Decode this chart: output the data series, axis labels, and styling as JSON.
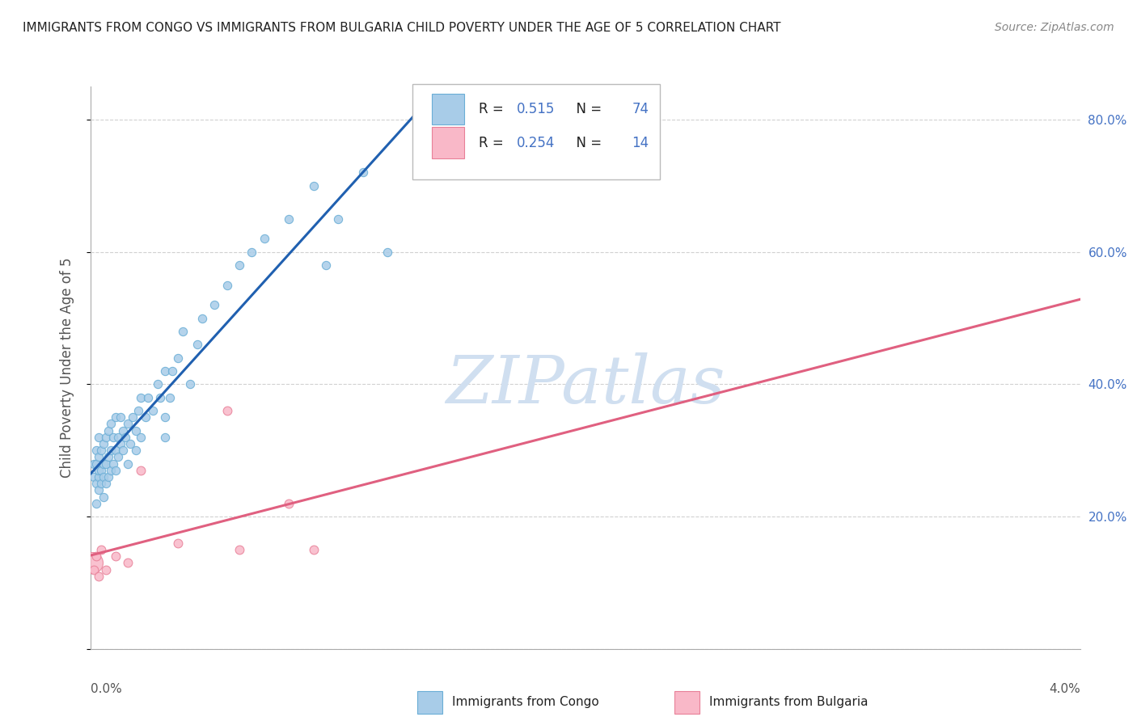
{
  "title": "IMMIGRANTS FROM CONGO VS IMMIGRANTS FROM BULGARIA CHILD POVERTY UNDER THE AGE OF 5 CORRELATION CHART",
  "source": "Source: ZipAtlas.com",
  "ylabel": "Child Poverty Under the Age of 5",
  "x_min": 0.0,
  "x_max": 0.04,
  "y_min": 0.0,
  "y_max": 0.85,
  "y_ticks": [
    0.0,
    0.2,
    0.4,
    0.6,
    0.8
  ],
  "congo_color": "#a8cce8",
  "congo_edge_color": "#6aaed6",
  "bulgaria_color": "#f9b8c8",
  "bulgaria_edge_color": "#e88098",
  "congo_line_color": "#2060b0",
  "bulgaria_line_color": "#e06080",
  "legend_color_congo": "#a8cce8",
  "legend_color_bulgaria": "#f9b8c8",
  "legend_edge_congo": "#6aaed6",
  "legend_edge_bulgaria": "#e88098",
  "watermark_color": "#d0dff0",
  "background_color": "#ffffff",
  "congo_scatter_x": [
    0.0001,
    0.0001,
    0.0002,
    0.0002,
    0.0002,
    0.0002,
    0.0003,
    0.0003,
    0.0003,
    0.0003,
    0.0003,
    0.0004,
    0.0004,
    0.0004,
    0.0005,
    0.0005,
    0.0005,
    0.0005,
    0.0006,
    0.0006,
    0.0006,
    0.0007,
    0.0007,
    0.0007,
    0.0008,
    0.0008,
    0.0008,
    0.0009,
    0.0009,
    0.001,
    0.001,
    0.001,
    0.0011,
    0.0011,
    0.0012,
    0.0012,
    0.0013,
    0.0013,
    0.0014,
    0.0015,
    0.0015,
    0.0016,
    0.0017,
    0.0018,
    0.0018,
    0.0019,
    0.002,
    0.002,
    0.0022,
    0.0023,
    0.0025,
    0.0027,
    0.0028,
    0.003,
    0.003,
    0.003,
    0.0032,
    0.0033,
    0.0035,
    0.0037,
    0.004,
    0.0043,
    0.0045,
    0.005,
    0.0055,
    0.006,
    0.0065,
    0.007,
    0.008,
    0.009,
    0.0095,
    0.01,
    0.011,
    0.012
  ],
  "congo_scatter_y": [
    0.26,
    0.28,
    0.22,
    0.25,
    0.28,
    0.3,
    0.24,
    0.26,
    0.27,
    0.29,
    0.32,
    0.25,
    0.27,
    0.3,
    0.23,
    0.26,
    0.28,
    0.31,
    0.25,
    0.28,
    0.32,
    0.26,
    0.29,
    0.33,
    0.27,
    0.3,
    0.34,
    0.28,
    0.32,
    0.27,
    0.3,
    0.35,
    0.29,
    0.32,
    0.31,
    0.35,
    0.3,
    0.33,
    0.32,
    0.28,
    0.34,
    0.31,
    0.35,
    0.3,
    0.33,
    0.36,
    0.32,
    0.38,
    0.35,
    0.38,
    0.36,
    0.4,
    0.38,
    0.32,
    0.35,
    0.42,
    0.38,
    0.42,
    0.44,
    0.48,
    0.4,
    0.46,
    0.5,
    0.52,
    0.55,
    0.58,
    0.6,
    0.62,
    0.65,
    0.7,
    0.58,
    0.65,
    0.72,
    0.6
  ],
  "bulgaria_scatter_x": [
    5e-05,
    0.0001,
    0.0002,
    0.0003,
    0.0004,
    0.0006,
    0.001,
    0.0015,
    0.002,
    0.0035,
    0.0055,
    0.006,
    0.008,
    0.009
  ],
  "bulgaria_scatter_y": [
    0.13,
    0.12,
    0.14,
    0.11,
    0.15,
    0.12,
    0.14,
    0.13,
    0.27,
    0.16,
    0.36,
    0.15,
    0.22,
    0.15
  ],
  "bulgaria_scatter_big": [
    0
  ],
  "legend_R_congo": "0.515",
  "legend_N_congo": "74",
  "legend_R_bulgaria": "0.254",
  "legend_N_bulgaria": "14"
}
